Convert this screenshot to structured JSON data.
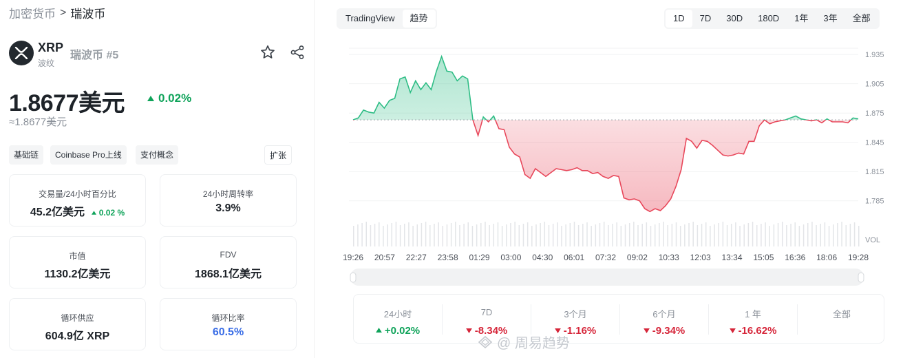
{
  "breadcrumb": {
    "parent": "加密货币",
    "separator": ">",
    "current": "瑞波币"
  },
  "coin": {
    "symbol": "XRP",
    "subname": "波纹",
    "name": "瑞波币",
    "rank": "#5",
    "logo_icon": "xrp-logo-icon",
    "favorite_icon": "star-icon",
    "share_icon": "share-icon"
  },
  "price": {
    "value": "1.8677美元",
    "change": "0.02%",
    "change_direction": "up",
    "approx": "≈1.8677美元"
  },
  "tags": [
    "基础链",
    "Coinbase Pro上线",
    "支付概念"
  ],
  "expand_label": "扩张",
  "stats": {
    "volume_label": "交易量/24小时百分比",
    "volume_value": "45.2亿美元",
    "volume_change": "0.02 %",
    "turnover_label": "24小时周转率",
    "turnover_value": "3.9%",
    "market_cap_label": "市值",
    "market_cap_value": "1130.2亿美元",
    "fdv_label": "FDV",
    "fdv_value": "1868.1亿美元",
    "circ_supply_label": "循环供应",
    "circ_supply_value": "604.9亿 XRP",
    "circ_ratio_label": "循环比率",
    "circ_ratio_value": "60.5%"
  },
  "chart_tabs": {
    "tradingview": "TradingView",
    "trend": "趋势",
    "active": "趋势"
  },
  "ranges": {
    "items": [
      "1D",
      "7D",
      "30D",
      "180D",
      "1年",
      "3年",
      "全部"
    ],
    "active": "1D"
  },
  "chart_data": {
    "type": "area",
    "baseline": 1.868,
    "ylim": [
      1.77,
      1.945
    ],
    "yticks": [
      "1.935",
      "1.905",
      "1.875",
      "1.845",
      "1.815",
      "1.785"
    ],
    "vol_label": "VOL",
    "xticks": [
      "19:26",
      "20:57",
      "22:27",
      "23:58",
      "01:29",
      "03:00",
      "04:30",
      "06:01",
      "07:32",
      "09:02",
      "10:33",
      "12:03",
      "13:34",
      "15:05",
      "16:36",
      "18:06",
      "19:28"
    ],
    "up_color": "#2ebd85",
    "down_color": "#e8475a",
    "values": [
      1.868,
      1.87,
      1.878,
      1.876,
      1.875,
      1.886,
      1.88,
      1.888,
      1.89,
      1.91,
      1.912,
      1.896,
      1.908,
      1.899,
      1.906,
      1.899,
      1.918,
      1.933,
      1.918,
      1.917,
      1.908,
      1.913,
      1.91,
      1.868,
      1.852,
      1.871,
      1.866,
      1.872,
      1.859,
      1.858,
      1.84,
      1.833,
      1.83,
      1.812,
      1.808,
      1.818,
      1.814,
      1.81,
      1.814,
      1.818,
      1.817,
      1.816,
      1.817,
      1.819,
      1.816,
      1.816,
      1.813,
      1.814,
      1.81,
      1.808,
      1.811,
      1.81,
      1.788,
      1.786,
      1.787,
      1.785,
      1.777,
      1.774,
      1.777,
      1.775,
      1.78,
      1.787,
      1.8,
      1.817,
      1.849,
      1.846,
      1.839,
      1.847,
      1.846,
      1.842,
      1.837,
      1.832,
      1.831,
      1.832,
      1.834,
      1.833,
      1.846,
      1.846,
      1.862,
      1.868,
      1.864,
      1.866,
      1.867,
      1.868,
      1.87,
      1.872,
      1.869,
      1.868,
      1.867,
      1.868,
      1.865,
      1.869,
      1.866,
      1.866,
      1.866,
      1.865,
      1.87,
      1.869
    ]
  },
  "performance": [
    {
      "label": "24小时",
      "value": "+0.02%",
      "direction": "up"
    },
    {
      "label": "7D",
      "value": "-8.34%",
      "direction": "down"
    },
    {
      "label": "3个月",
      "value": "-1.16%",
      "direction": "down"
    },
    {
      "label": "6个月",
      "value": "-9.34%",
      "direction": "down"
    },
    {
      "label": "1 年",
      "value": "-16.62%",
      "direction": "down"
    },
    {
      "label": "全部",
      "value": "",
      "direction": "none"
    }
  ],
  "watermark": "@ 周易趋势"
}
